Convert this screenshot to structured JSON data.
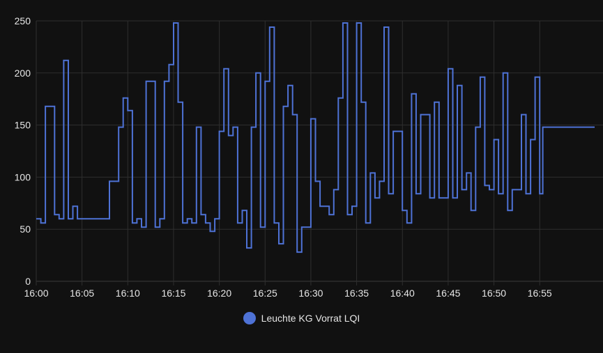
{
  "chart_data": {
    "type": "line",
    "title": "",
    "xlabel": "",
    "ylabel": "",
    "x_ticks": [
      "16:00",
      "16:05",
      "16:10",
      "16:15",
      "16:20",
      "16:25",
      "16:30",
      "16:35",
      "16:40",
      "16:45",
      "16:50",
      "16:55"
    ],
    "y_ticks": [
      0,
      50,
      100,
      150,
      200,
      250
    ],
    "ylim": [
      0,
      250
    ],
    "xlim_minutes": [
      0,
      61
    ],
    "step": true,
    "grid": true,
    "legend_position": "bottom",
    "series": [
      {
        "name": "Leuchte KG Vorrat LQI",
        "color": "#4e72d6",
        "points": [
          [
            "16:00",
            60
          ],
          [
            "16:00",
            56
          ],
          [
            "16:01",
            168
          ],
          [
            "16:02",
            64
          ],
          [
            "16:02",
            60
          ],
          [
            "16:03",
            212
          ],
          [
            "16:03",
            60
          ],
          [
            "16:04",
            72
          ],
          [
            "16:04",
            60
          ],
          [
            "16:08",
            96
          ],
          [
            "16:09",
            148
          ],
          [
            "16:09",
            176
          ],
          [
            "16:10",
            164
          ],
          [
            "16:10",
            56
          ],
          [
            "16:11",
            60
          ],
          [
            "16:11",
            52
          ],
          [
            "16:12",
            192
          ],
          [
            "16:13",
            52
          ],
          [
            "16:13",
            60
          ],
          [
            "16:14",
            192
          ],
          [
            "16:14",
            208
          ],
          [
            "16:15",
            248
          ],
          [
            "16:15",
            172
          ],
          [
            "16:16",
            56
          ],
          [
            "16:16",
            60
          ],
          [
            "16:17",
            56
          ],
          [
            "16:17",
            148
          ],
          [
            "16:18",
            64
          ],
          [
            "16:18",
            56
          ],
          [
            "16:19",
            48
          ],
          [
            "16:19",
            60
          ],
          [
            "16:20",
            144
          ],
          [
            "16:20",
            204
          ],
          [
            "16:21",
            140
          ],
          [
            "16:21",
            148
          ],
          [
            "16:22",
            56
          ],
          [
            "16:22",
            68
          ],
          [
            "16:23",
            32
          ],
          [
            "16:23",
            148
          ],
          [
            "16:24",
            200
          ],
          [
            "16:24",
            52
          ],
          [
            "16:25",
            192
          ],
          [
            "16:25",
            244
          ],
          [
            "16:26",
            56
          ],
          [
            "16:26",
            36
          ],
          [
            "16:27",
            168
          ],
          [
            "16:27",
            188
          ],
          [
            "16:28",
            160
          ],
          [
            "16:28",
            28
          ],
          [
            "16:29",
            52
          ],
          [
            "16:30",
            156
          ],
          [
            "16:30",
            96
          ],
          [
            "16:31",
            72
          ],
          [
            "16:32",
            64
          ],
          [
            "16:32",
            88
          ],
          [
            "16:33",
            176
          ],
          [
            "16:33",
            248
          ],
          [
            "16:34",
            64
          ],
          [
            "16:34",
            72
          ],
          [
            "16:35",
            248
          ],
          [
            "16:35",
            172
          ],
          [
            "16:36",
            56
          ],
          [
            "16:36",
            104
          ],
          [
            "16:37",
            80
          ],
          [
            "16:37",
            96
          ],
          [
            "16:38",
            244
          ],
          [
            "16:38",
            84
          ],
          [
            "16:39",
            144
          ],
          [
            "16:40",
            68
          ],
          [
            "16:40",
            56
          ],
          [
            "16:41",
            180
          ],
          [
            "16:41",
            84
          ],
          [
            "16:42",
            160
          ],
          [
            "16:43",
            80
          ],
          [
            "16:43",
            172
          ],
          [
            "16:44",
            80
          ],
          [
            "16:45",
            204
          ],
          [
            "16:45",
            80
          ],
          [
            "16:46",
            188
          ],
          [
            "16:46",
            88
          ],
          [
            "16:47",
            104
          ],
          [
            "16:47",
            68
          ],
          [
            "16:48",
            148
          ],
          [
            "16:48",
            196
          ],
          [
            "16:49",
            92
          ],
          [
            "16:49",
            88
          ],
          [
            "16:50",
            136
          ],
          [
            "16:50",
            84
          ],
          [
            "16:51",
            200
          ],
          [
            "16:51",
            68
          ],
          [
            "16:52",
            88
          ],
          [
            "16:53",
            160
          ],
          [
            "16:53",
            84
          ],
          [
            "16:54",
            136
          ],
          [
            "16:54",
            196
          ],
          [
            "16:55",
            84
          ],
          [
            "16:55",
            148
          ],
          [
            "16:55",
            148
          ]
        ]
      }
    ]
  }
}
